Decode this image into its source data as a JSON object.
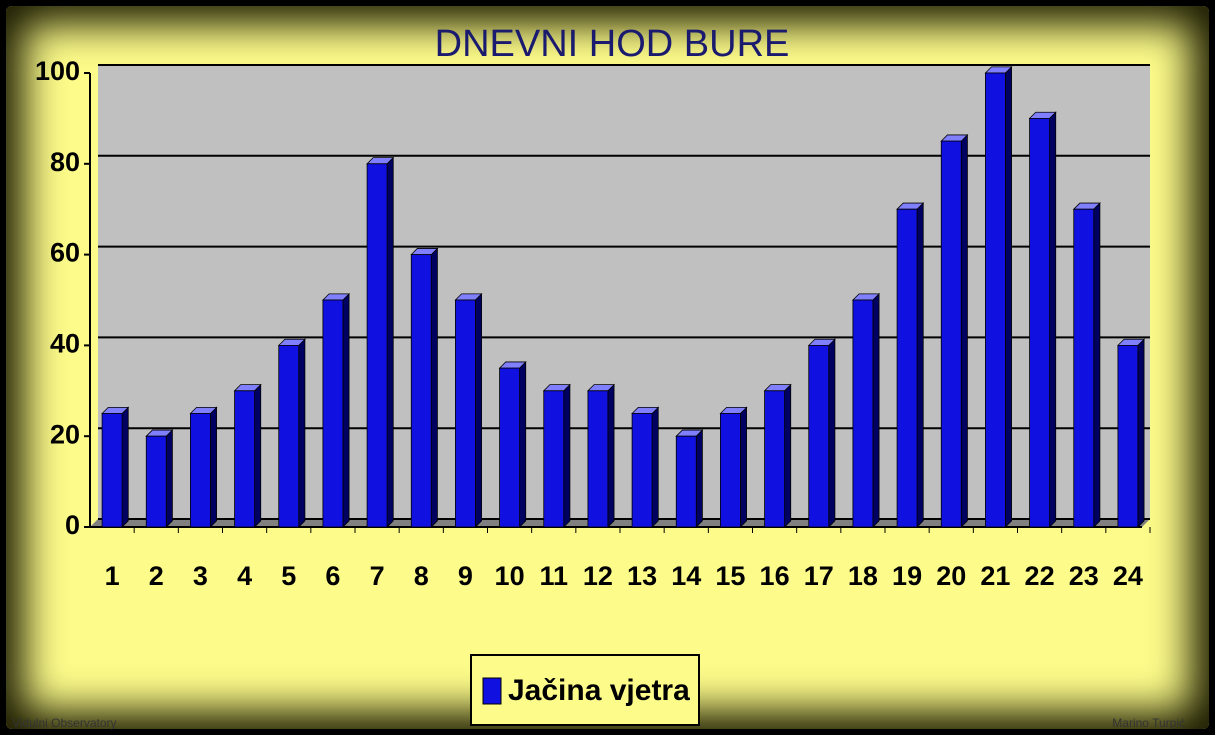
{
  "chart_data": {
    "type": "bar",
    "title": "DNEVNI HOD BURE",
    "categories": [
      "1",
      "2",
      "3",
      "4",
      "5",
      "6",
      "7",
      "8",
      "9",
      "10",
      "11",
      "12",
      "13",
      "14",
      "15",
      "16",
      "17",
      "18",
      "19",
      "20",
      "21",
      "22",
      "23",
      "24"
    ],
    "series": [
      {
        "name": "Jačina vjetra",
        "color": "#1010e0",
        "values": [
          25,
          20,
          25,
          30,
          40,
          50,
          80,
          60,
          50,
          35,
          30,
          30,
          25,
          20,
          25,
          30,
          40,
          50,
          70,
          85,
          100,
          90,
          70,
          40
        ]
      }
    ],
    "ylim": [
      0,
      100
    ],
    "yticks": [
      0,
      20,
      40,
      60,
      80,
      100
    ],
    "grid": true,
    "source": "Vidulni Observatory",
    "credit": "Marino Turpić"
  }
}
